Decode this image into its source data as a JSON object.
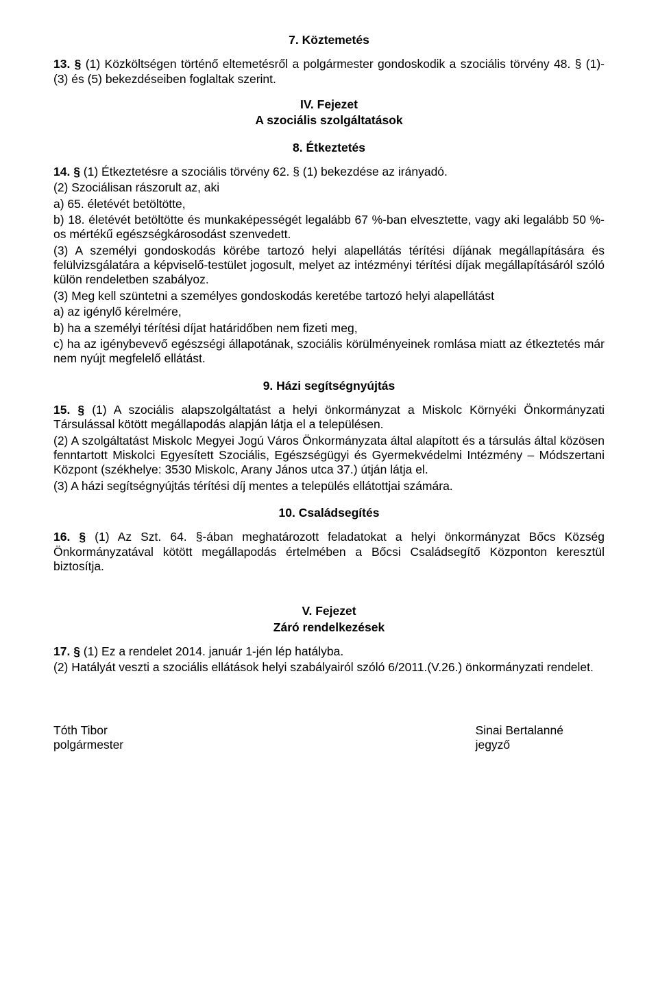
{
  "sec7": {
    "title": "7. Köztemetés",
    "p13": "13. § (1) Közköltségen történő eltemetésről a polgármester gondoskodik a szociális törvény 48. § (1)-(3) és (5)  bekezdéseiben foglaltak szerint."
  },
  "chapter4": {
    "line1": "IV. Fejezet",
    "line2": "A szociális szolgáltatások"
  },
  "sec8": {
    "title": "8. Étkeztetés",
    "p14_lead": "14. § (1) Étkeztetésre a szociális törvény 62. § (1) bekezdése az irányadó.",
    "p14_2": "(2) Szociálisan rászorult az, aki",
    "p14_a": "a) 65. életévét betöltötte,",
    "p14_b": "b) 18. életévét betöltötte és munkaképességét legalább 67 %-ban elvesztette, vagy aki legalább 50 %-os mértékű egészségkárosodást szenvedett.",
    "p14_3a": "(3) A személyi gondoskodás körébe tartozó helyi alapellátás térítési díjának megállapítására és felülvizsgálatára a képviselő-testület jogosult, melyet az intézményi térítési díjak megállapításáról szóló külön rendeletben szabályoz.",
    "p14_3b": "(3) Meg kell szüntetni a személyes gondoskodás keretébe tartozó helyi alapellátást",
    "p14_3b_a": "a) az igénylő kérelmére,",
    "p14_3b_b": "b) ha a személyi térítési díjat határidőben nem fizeti meg,",
    "p14_3b_c": "c) ha az igénybevevő egészségi állapotának, szociális körülményeinek romlása miatt az étkeztetés már nem nyújt megfelelő ellátást."
  },
  "sec9": {
    "title": "9. Házi segítségnyújtás",
    "p15_1": "15. § (1) A szociális alapszolgáltatást a helyi önkormányzat a Miskolc Környéki Önkormányzati Társulással kötött  megállapodás alapján látja el a településen.",
    "p15_2": "(2) A szolgáltatást Miskolc Megyei Jogú Város Önkormányzata által alapított és a társulás által közösen fenntartott Miskolci Egyesített Szociális, Egészségügyi és Gyermekvédelmi Intézmény – Módszertani Központ (székhelye: 3530 Miskolc, Arany János utca 37.) útján látja el.",
    "p15_3": "(3) A házi segítségnyújtás térítési díj mentes a település ellátottjai számára."
  },
  "sec10": {
    "title": "10. Családsegítés",
    "p16": "16. § (1) Az Szt. 64. §-ában meghatározott feladatokat a helyi önkormányzat Bőcs Község Önkormányzatával kötött megállapodás értelmében a Bőcsi Családsegítő Központon keresztül biztosítja."
  },
  "chapter5": {
    "line1": "V. Fejezet",
    "line2": "Záró rendelkezések"
  },
  "closing": {
    "p17_1": "17. § (1) Ez a rendelet 2014. január 1-jén lép hatályba.",
    "p17_2": "(2) Hatályát veszti a szociális ellátások helyi szabályairól szóló 6/2011.(V.26.) önkormányzati rendelet."
  },
  "signers": {
    "left_name": "Tóth Tibor",
    "left_title": "polgármester",
    "right_name": "Sinai Bertalanné",
    "right_title": "jegyző"
  }
}
